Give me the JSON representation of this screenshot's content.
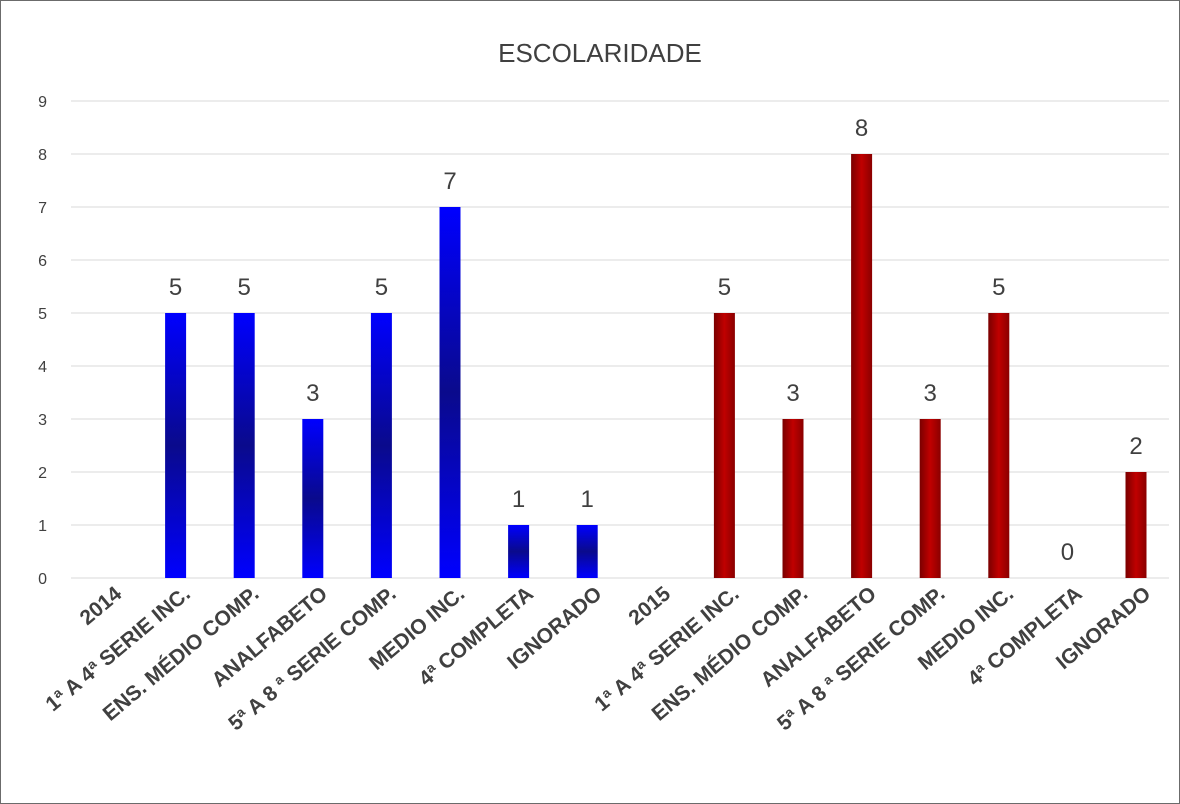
{
  "chart_data": {
    "type": "bar",
    "title": "ESCOLARIDADE",
    "categories": [
      "2014",
      "1ª A 4ª SERIE INC.",
      "ENS. MÉDIO COMP.",
      "ANALFABETO",
      "5ª A 8 ª SERIE COMP.",
      "MEDIO INC.",
      "4ª COMPLETA",
      "IGNORADO",
      "2015",
      "1ª A 4ª SERIE INC.",
      "ENS. MÉDIO COMP.",
      "ANALFABETO",
      "5ª A 8 ª SERIE COMP.",
      "MEDIO INC.",
      "4ª COMPLETA",
      "IGNORADO"
    ],
    "values": [
      null,
      5,
      5,
      3,
      5,
      7,
      1,
      1,
      null,
      5,
      3,
      8,
      3,
      5,
      0,
      2
    ],
    "bar_groups": [
      "",
      "2014",
      "2014",
      "2014",
      "2014",
      "2014",
      "2014",
      "2014",
      "",
      "2015",
      "2015",
      "2015",
      "2015",
      "2015",
      "2015",
      "2015"
    ],
    "group_colors": {
      "2014": "#0000ff",
      "2015": "#c00000"
    },
    "ylim": [
      0,
      9
    ],
    "yticks": [
      0,
      1,
      2,
      3,
      4,
      5,
      6,
      7,
      8,
      9
    ],
    "xlabel": "",
    "ylabel": "",
    "grid": true,
    "legend": "none",
    "data_labels": true
  }
}
